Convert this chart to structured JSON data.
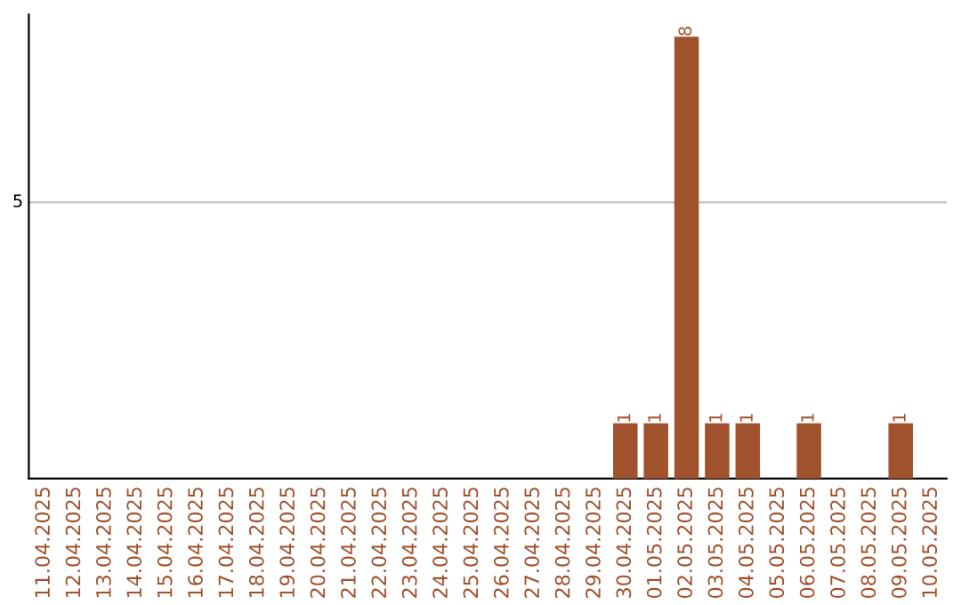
{
  "chart_data": {
    "type": "bar",
    "categories": [
      "11.04.2025",
      "12.04.2025",
      "13.04.2025",
      "14.04.2025",
      "15.04.2025",
      "16.04.2025",
      "17.04.2025",
      "18.04.2025",
      "19.04.2025",
      "20.04.2025",
      "21.04.2025",
      "22.04.2025",
      "23.04.2025",
      "24.04.2025",
      "25.04.2025",
      "26.04.2025",
      "27.04.2025",
      "28.04.2025",
      "29.04.2025",
      "30.04.2025",
      "01.05.2025",
      "02.05.2025",
      "03.05.2025",
      "04.05.2025",
      "05.05.2025",
      "06.05.2025",
      "07.05.2025",
      "08.05.2025",
      "09.05.2025",
      "10.05.2025"
    ],
    "values": [
      null,
      null,
      null,
      null,
      null,
      null,
      null,
      null,
      null,
      null,
      null,
      null,
      null,
      null,
      null,
      null,
      null,
      null,
      null,
      1,
      1,
      8,
      1,
      1,
      null,
      1,
      null,
      null,
      1,
      null
    ],
    "value_labels": [
      null,
      null,
      null,
      null,
      null,
      null,
      null,
      null,
      null,
      null,
      null,
      null,
      null,
      null,
      null,
      null,
      null,
      null,
      null,
      "1",
      "1",
      "8",
      "1",
      "1",
      null,
      "1",
      null,
      null,
      "1",
      null
    ],
    "color": "#a0522d",
    "ylim": [
      0,
      8.4
    ],
    "ref_lines": [
      {
        "axis": "y",
        "value": 5,
        "label": "5",
        "color": "#cccccc"
      }
    ],
    "legend": false
  }
}
